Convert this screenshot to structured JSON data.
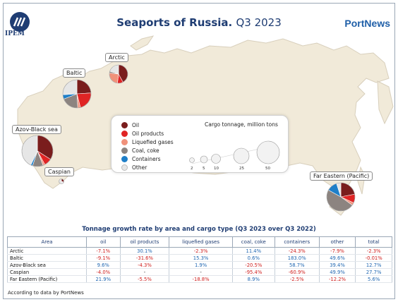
{
  "header": {
    "title": "Seaports of Russia.",
    "title_period": "Q3 2023",
    "left_logo_text": "IPEM",
    "right_logo_text": "PortNews"
  },
  "legend": {
    "items": [
      {
        "label": "Oil",
        "color": "#7a1d1d"
      },
      {
        "label": "Oil products",
        "color": "#e02424"
      },
      {
        "label": "Liquefied gases",
        "color": "#f0917a"
      },
      {
        "label": "Coal, coke",
        "color": "#8c8480"
      },
      {
        "label": "Containers",
        "color": "#1f7fc8"
      },
      {
        "label": "Other",
        "color": "#e6e6e6"
      }
    ],
    "size_title": "Cargo tonnage, million tons",
    "size_values": [
      "2",
      "5",
      "10",
      "25",
      "50"
    ]
  },
  "regions": {
    "arctic": "Arctic",
    "baltic": "Baltic",
    "azov": "Azov-Black sea",
    "caspian": "Caspian",
    "far_east": "Far Eastern (Pacific)"
  },
  "chart_data": {
    "type": "table",
    "title": "Tonnage growth rate by area and cargo type (Q3 2023 over Q3 2022)",
    "columns": [
      "Area",
      "oil",
      "oil products",
      "liquefied gases",
      "coal, coke",
      "containers",
      "other",
      "total"
    ],
    "rows": [
      {
        "area": "Arctic",
        "values": [
          "-7.1%",
          "30.1%",
          "-2.3%",
          "11.4%",
          "-24.3%",
          "-7.9%",
          "-2.3%"
        ]
      },
      {
        "area": "Baltic",
        "values": [
          "-9.1%",
          "-31.6%",
          "15.3%",
          "0.6%",
          "183.0%",
          "49.6%",
          "-0.01%"
        ]
      },
      {
        "area": "Azov-Black sea",
        "values": [
          "9.6%",
          "-4.3%",
          "1.9%",
          "-20.5%",
          "58.7%",
          "39.4%",
          "12.7%"
        ]
      },
      {
        "area": "Caspian",
        "values": [
          "-4.0%",
          "-",
          "-",
          "-95.4%",
          "-60.9%",
          "49.9%",
          "27.7%"
        ]
      },
      {
        "area": "Far Eastern (Pacific)",
        "values": [
          "21.9%",
          "-5.5%",
          "-18.8%",
          "8.9%",
          "-2.5%",
          "-12.2%",
          "5.6%"
        ]
      }
    ],
    "pies": [
      {
        "region": "Arctic",
        "size": "small",
        "shares": {
          "Oil": 0.42,
          "Oil products": 0.1,
          "Liquefied gases": 0.25,
          "Coal, coke": 0.03,
          "Containers": 0.0,
          "Other": 0.2
        }
      },
      {
        "region": "Baltic",
        "size": "large",
        "shares": {
          "Oil": 0.24,
          "Oil products": 0.22,
          "Liquefied gases": 0.03,
          "Coal, coke": 0.2,
          "Containers": 0.05,
          "Other": 0.26
        }
      },
      {
        "region": "Azov-Black sea",
        "size": "largest",
        "shares": {
          "Oil": 0.34,
          "Oil products": 0.08,
          "Liquefied gases": 0.02,
          "Coal, coke": 0.11,
          "Containers": 0.02,
          "Other": 0.43
        }
      },
      {
        "region": "Caspian",
        "size": "tiny",
        "shares": {
          "Oil": 0.3,
          "Oil products": 0.05,
          "Liquefied gases": 0.0,
          "Coal, coke": 0.0,
          "Containers": 0.05,
          "Other": 0.6
        }
      },
      {
        "region": "Far Eastern (Pacific)",
        "size": "large",
        "shares": {
          "Oil": 0.22,
          "Oil products": 0.1,
          "Liquefied gases": 0.03,
          "Coal, coke": 0.48,
          "Containers": 0.12,
          "Other": 0.05
        }
      }
    ]
  },
  "footnote": "According to data by PortNews"
}
